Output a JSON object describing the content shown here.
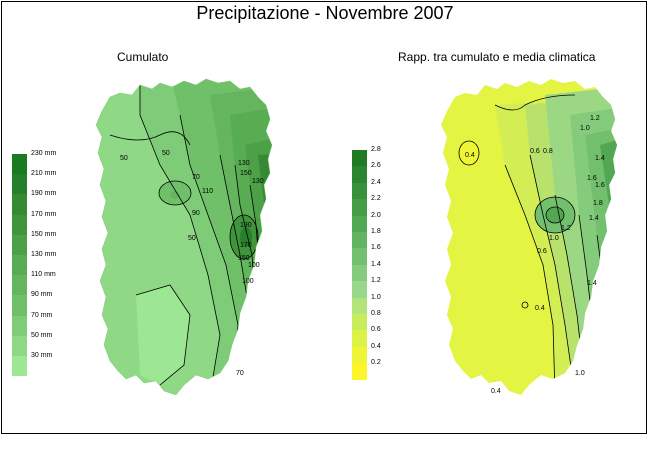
{
  "title": "Precipitazione - Novembre 2007",
  "left_panel": {
    "subtitle": "Cumulato",
    "legend": {
      "labels": [
        "230 mm",
        "210 mm",
        "190 mm",
        "170 mm",
        "150 mm",
        "130 mm",
        "110 mm",
        "90 mm",
        "70 mm",
        "50 mm",
        "30 mm"
      ],
      "colors": [
        "#1a7a22",
        "#267f2a",
        "#358a33",
        "#3f953c",
        "#4ca148",
        "#58ad52",
        "#64b55e",
        "#70c06a",
        "#7fcc78",
        "#8ed886",
        "#9de694"
      ]
    },
    "contour_labels": [
      "50",
      "50",
      "70",
      "130",
      "150",
      "130",
      "90",
      "110",
      "170",
      "150",
      "190",
      "50",
      "100",
      "100",
      "70"
    ]
  },
  "right_panel": {
    "subtitle": "Rapp. tra cumulato e media climatica",
    "legend": {
      "labels": [
        "2.8",
        "2.6",
        "2.4",
        "2.2",
        "2.0",
        "1.8",
        "1.6",
        "1.4",
        "1.2",
        "1.0",
        "0.8",
        "0.6",
        "0.4",
        "0.2"
      ],
      "colors": [
        "#1e7a24",
        "#2a862e",
        "#37903a",
        "#449c45",
        "#52a852",
        "#62b460",
        "#72c06e",
        "#84cc7c",
        "#98d88a",
        "#b2e47a",
        "#c8ec5c",
        "#dcf246",
        "#eef536",
        "#fbf62a"
      ]
    },
    "contour_labels": [
      "0.4",
      "0.6",
      "0.8",
      "1.0",
      "1.2",
      "1.4",
      "1.6",
      "1.6",
      "1.8",
      "1.4",
      "1.2",
      "1.0",
      "0.6",
      "0.4",
      "1.0",
      "0.4",
      "1.4"
    ]
  },
  "colors": {
    "frame": "#000000",
    "background": "#ffffff",
    "contour": "#000000"
  }
}
